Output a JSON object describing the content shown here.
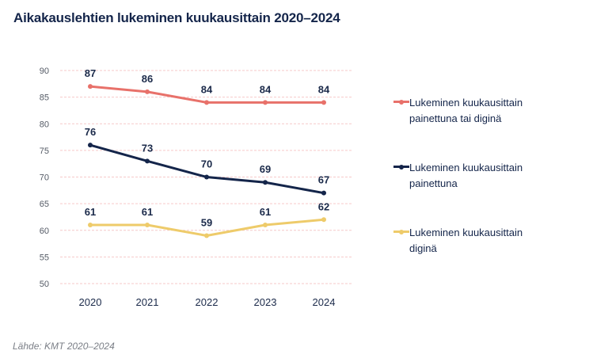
{
  "chart_data": {
    "type": "line",
    "title": "Aikakauslehtien lukeminen kuukausittain 2020–2024",
    "xlabel": "",
    "ylabel": "",
    "x": [
      "2020",
      "2021",
      "2022",
      "2023",
      "2024"
    ],
    "ylim": [
      50,
      90
    ],
    "yticks": [
      "90",
      "85",
      "80",
      "75",
      "70",
      "65",
      "60",
      "55",
      "50"
    ],
    "grid": true,
    "legend_position": "right",
    "series": [
      {
        "name": "Lukeminen kuukausittain painettuna tai diginä",
        "values": [
          87,
          86,
          84,
          84,
          84
        ],
        "color": "#e8716a",
        "labels": [
          "87",
          "86",
          "84",
          "84",
          "84"
        ]
      },
      {
        "name": "Lukeminen kuukausittain painettuna",
        "values": [
          76,
          73,
          70,
          69,
          67
        ],
        "color": "#14254a",
        "labels": [
          "76",
          "73",
          "70",
          "69",
          "67"
        ]
      },
      {
        "name": "Lukeminen kuukausittain diginä",
        "values": [
          61,
          61,
          59,
          61,
          62
        ],
        "color": "#eecb6a",
        "labels": [
          "61",
          "61",
          "59",
          "61",
          "62"
        ]
      }
    ],
    "source": "Lähde: KMT 2020–2024"
  },
  "legend": {
    "items": [
      {
        "line1": "Lukeminen kuukausittain",
        "line2": "painettuna tai diginä"
      },
      {
        "line1": "Lukeminen kuukausittain",
        "line2": "painettuna"
      },
      {
        "line1": "Lukeminen kuukausittain",
        "line2": "diginä"
      }
    ]
  }
}
